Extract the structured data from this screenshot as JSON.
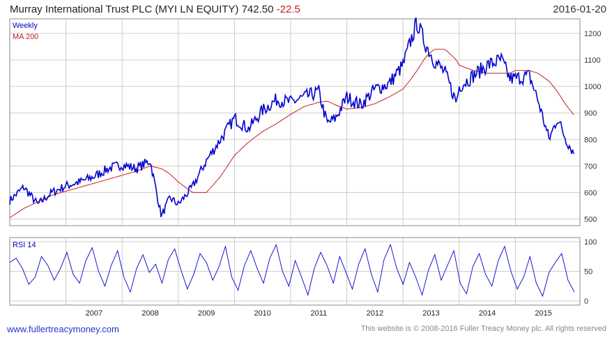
{
  "header": {
    "title": "Murray International Trust PLC (MYI LN EQUITY) 742.50",
    "change": "-22.5",
    "date": "2016-01-20"
  },
  "footer": {
    "site": "www.fullertreacymoney.com",
    "copyright": "This website is © 2008-2016 Fuller Treacy Money plc. All rights reserved"
  },
  "colors": {
    "price": "#0000cc",
    "ma": "#c02020",
    "rsi": "#0000cc",
    "grid": "#cccccc"
  },
  "chart_data": [
    {
      "type": "line",
      "legend": [
        "Weekly",
        "MA 200"
      ],
      "x_labels": [
        "2007",
        "2008",
        "2009",
        "2010",
        "2011",
        "2012",
        "2013",
        "2014",
        "2015"
      ],
      "y_ticks": [
        500,
        600,
        700,
        800,
        900,
        1000,
        1100,
        1200
      ],
      "ylim": [
        475,
        1255
      ],
      "x": [
        2006.0,
        2006.25,
        2006.5,
        2006.75,
        2007.0,
        2007.25,
        2007.5,
        2007.75,
        2008.0,
        2008.25,
        2008.5,
        2008.7,
        2008.85,
        2009.0,
        2009.25,
        2009.5,
        2009.75,
        2010.0,
        2010.25,
        2010.5,
        2010.75,
        2011.0,
        2011.25,
        2011.5,
        2011.65,
        2011.8,
        2012.0,
        2012.25,
        2012.5,
        2012.75,
        2013.0,
        2013.15,
        2013.25,
        2013.4,
        2013.55,
        2013.75,
        2013.95,
        2014.0,
        2014.25,
        2014.5,
        2014.75,
        2014.9,
        2015.0,
        2015.25,
        2015.4,
        2015.6,
        2015.75,
        2015.9,
        2016.05
      ],
      "series": [
        {
          "name": "Weekly",
          "values": [
            570,
            620,
            555,
            600,
            625,
            640,
            660,
            690,
            705,
            690,
            720,
            510,
            580,
            555,
            620,
            720,
            800,
            880,
            840,
            910,
            950,
            940,
            960,
            980,
            860,
            880,
            960,
            930,
            990,
            1010,
            1080,
            1180,
            1240,
            1160,
            1100,
            1050,
            940,
            1000,
            1040,
            1080,
            1100,
            1030,
            1030,
            1040,
            950,
            800,
            880,
            800,
            745
          ]
        },
        {
          "name": "MA 200",
          "values": [
            505,
            540,
            565,
            590,
            605,
            620,
            635,
            650,
            665,
            680,
            700,
            690,
            670,
            640,
            600,
            600,
            660,
            740,
            790,
            830,
            860,
            895,
            925,
            940,
            945,
            930,
            915,
            920,
            935,
            960,
            990,
            1030,
            1060,
            1110,
            1140,
            1140,
            1100,
            1080,
            1060,
            1050,
            1050,
            1050,
            1060,
            1060,
            1050,
            1020,
            980,
            930,
            890
          ]
        }
      ]
    },
    {
      "type": "line",
      "legend": [
        "RSI 14"
      ],
      "y_ticks": [
        0,
        50,
        100
      ],
      "ylim": [
        0,
        100
      ],
      "series": [
        {
          "name": "RSI 14",
          "values": [
            65,
            72,
            55,
            28,
            40,
            75,
            60,
            35,
            55,
            82,
            45,
            30,
            68,
            90,
            50,
            25,
            60,
            85,
            40,
            15,
            55,
            78,
            48,
            62,
            30,
            70,
            88,
            52,
            20,
            45,
            80,
            65,
            35,
            58,
            92,
            40,
            18,
            60,
            85,
            55,
            30,
            72,
            95,
            50,
            25,
            68,
            40,
            10,
            55,
            82,
            60,
            30,
            75,
            48,
            20,
            62,
            88,
            45,
            15,
            70,
            95,
            55,
            28,
            65,
            40,
            10,
            52,
            78,
            35,
            60,
            85,
            30,
            12,
            58,
            80,
            45,
            25,
            68,
            92,
            50,
            20,
            40,
            75,
            30,
            8,
            48,
            65,
            80,
            35,
            15
          ]
        }
      ]
    }
  ]
}
